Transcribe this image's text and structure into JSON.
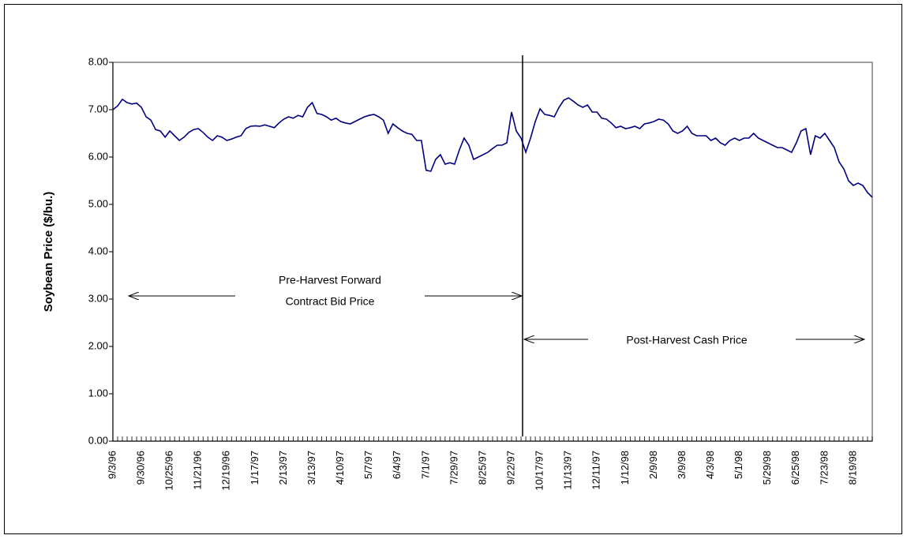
{
  "chart_data": {
    "type": "line",
    "y_label": "Soybean Price ($/bu.)",
    "annotations": {
      "pre_harvest": [
        "Pre-Harvest Forward",
        "Contract Bid Price"
      ],
      "post_harvest": "Post-Harvest Cash Price"
    },
    "categories": [
      "9/3/96",
      null,
      null,
      null,
      null,
      null,
      "9/30/96",
      null,
      null,
      null,
      null,
      null,
      "10/25/96",
      null,
      null,
      null,
      null,
      null,
      "11/21/96",
      null,
      null,
      null,
      null,
      null,
      "12/19/96",
      null,
      null,
      null,
      null,
      null,
      "1/17/97",
      null,
      null,
      null,
      null,
      null,
      "2/13/97",
      null,
      null,
      null,
      null,
      null,
      "3/13/97",
      null,
      null,
      null,
      null,
      null,
      "4/10/97",
      null,
      null,
      null,
      null,
      null,
      "5/7/97",
      null,
      null,
      null,
      null,
      null,
      "6/4/97",
      null,
      null,
      null,
      null,
      null,
      "7/1/97",
      null,
      null,
      null,
      null,
      null,
      "7/29/97",
      null,
      null,
      null,
      null,
      null,
      "8/25/97",
      null,
      null,
      null,
      null,
      null,
      "9/22/97",
      null,
      null,
      null,
      null,
      null,
      "10/17/97",
      null,
      null,
      null,
      null,
      null,
      "11/13/97",
      null,
      null,
      null,
      null,
      null,
      "12/11/97",
      null,
      null,
      null,
      null,
      null,
      "1/12/98",
      null,
      null,
      null,
      null,
      null,
      "2/9/98",
      null,
      null,
      null,
      null,
      null,
      "3/9/98",
      null,
      null,
      null,
      null,
      null,
      "4/3/98",
      null,
      null,
      null,
      null,
      null,
      "5/1/98",
      null,
      null,
      null,
      null,
      null,
      "5/29/98",
      null,
      null,
      null,
      null,
      null,
      "6/25/98",
      null,
      null,
      null,
      null,
      null,
      "7/23/98",
      null,
      null,
      null,
      null,
      null,
      "8/19/98",
      null,
      null,
      null,
      null
    ],
    "series": [
      {
        "color": "#000080",
        "values": [
          7.0,
          7.08,
          7.22,
          7.15,
          7.12,
          7.14,
          7.05,
          6.85,
          6.78,
          6.58,
          6.55,
          6.42,
          6.55,
          6.45,
          6.35,
          6.42,
          6.52,
          6.58,
          6.6,
          6.52,
          6.42,
          6.35,
          6.45,
          6.42,
          6.35,
          6.38,
          6.42,
          6.45,
          6.6,
          6.65,
          6.66,
          6.65,
          6.68,
          6.65,
          6.62,
          6.72,
          6.8,
          6.85,
          6.82,
          6.88,
          6.85,
          7.05,
          7.15,
          6.92,
          6.9,
          6.85,
          6.78,
          6.82,
          6.75,
          6.72,
          6.7,
          6.75,
          6.8,
          6.85,
          6.88,
          6.9,
          6.85,
          6.78,
          6.5,
          6.7,
          6.62,
          6.55,
          6.5,
          6.48,
          6.35,
          6.35,
          5.72,
          5.7,
          5.95,
          6.05,
          5.85,
          5.88,
          5.85,
          6.15,
          6.4,
          6.25,
          5.95,
          6.0,
          6.05,
          6.1,
          6.18,
          6.25,
          6.25,
          6.3,
          6.95,
          6.55,
          6.4,
          6.1,
          6.4,
          6.75,
          7.02,
          6.9,
          6.88,
          6.85,
          7.05,
          7.2,
          7.25,
          7.18,
          7.1,
          7.05,
          7.1,
          6.95,
          6.95,
          6.82,
          6.8,
          6.72,
          6.62,
          6.65,
          6.6,
          6.62,
          6.65,
          6.6,
          6.7,
          6.72,
          6.75,
          6.8,
          6.78,
          6.7,
          6.55,
          6.5,
          6.55,
          6.65,
          6.5,
          6.45,
          6.45,
          6.45,
          6.35,
          6.4,
          6.3,
          6.25,
          6.35,
          6.4,
          6.35,
          6.4,
          6.4,
          6.5,
          6.4,
          6.35,
          6.3,
          6.25,
          6.2,
          6.2,
          6.15,
          6.1,
          6.3,
          6.55,
          6.6,
          6.05,
          6.45,
          6.4,
          6.5,
          6.35,
          6.2,
          5.9,
          5.75,
          5.5,
          5.4,
          5.45,
          5.4,
          5.25,
          5.15
        ]
      }
    ],
    "ylim": [
      0,
      8
    ],
    "yticks": [
      {
        "value": 0,
        "label": "0.00"
      },
      {
        "value": 1,
        "label": "1.00"
      },
      {
        "value": 2,
        "label": "2.00"
      },
      {
        "value": 3,
        "label": "3.00"
      },
      {
        "value": 4,
        "label": "4.00"
      },
      {
        "value": 5,
        "label": "5.00"
      },
      {
        "value": 6,
        "label": "6.00"
      },
      {
        "value": 7,
        "label": "7.00"
      },
      {
        "value": 8,
        "label": "8.00"
      }
    ],
    "grid": false
  }
}
